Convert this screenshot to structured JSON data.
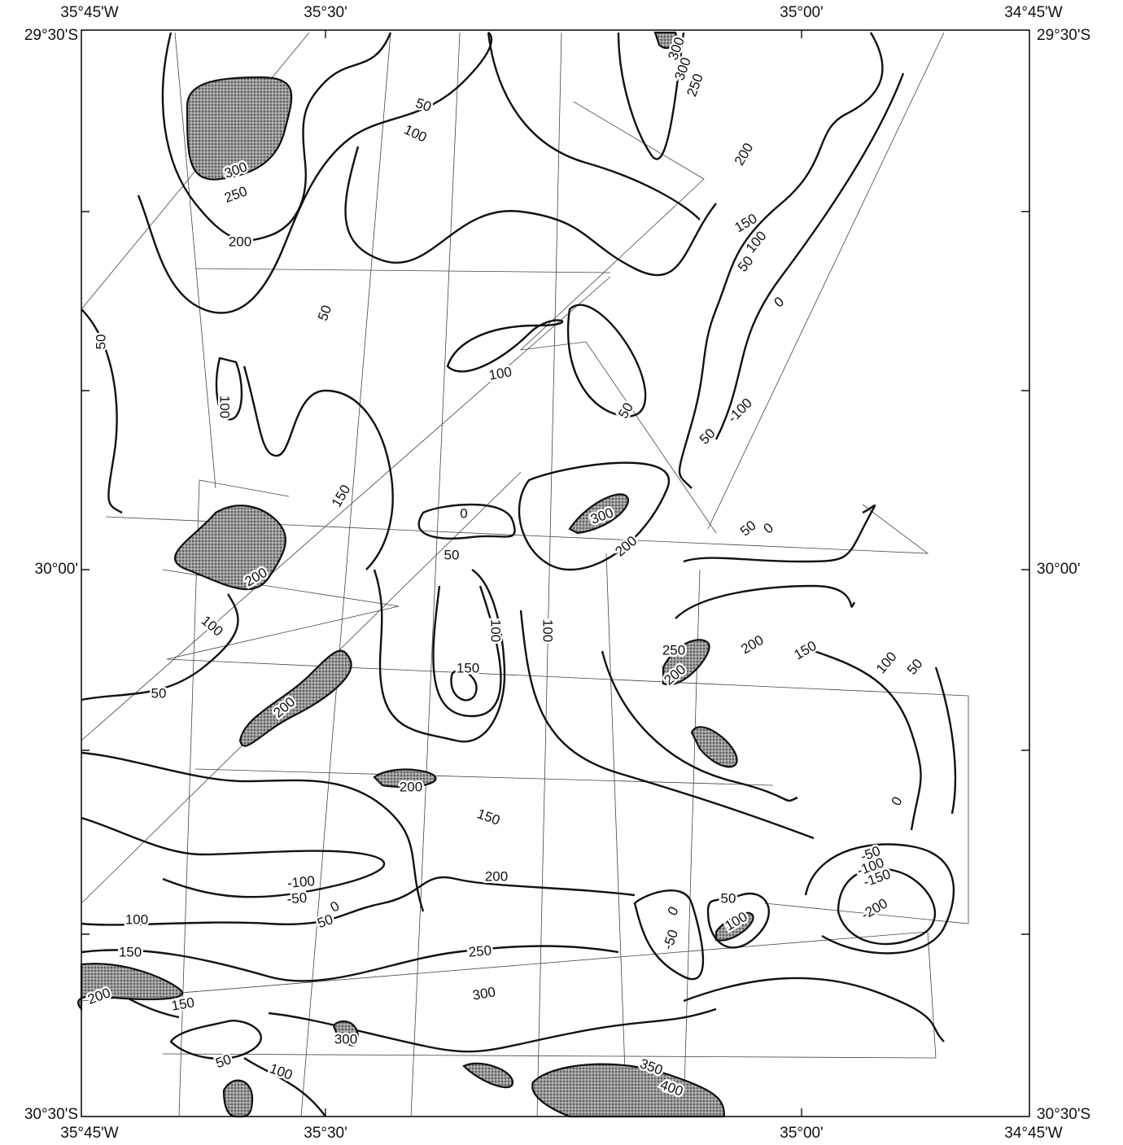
{
  "map": {
    "top_labels": [
      "35°45'W",
      "35°30'",
      "35°00'",
      "34°45'W"
    ],
    "bottom_labels": [
      "35°45'W",
      "35°30'",
      "35°00'",
      "34°45'W"
    ],
    "left_labels": [
      "29°30'S",
      "30°00'",
      "30°30'S"
    ],
    "right_labels": [
      "29°30'S",
      "30°00'",
      "30°30'S"
    ],
    "contour_labels": [
      "50",
      "100",
      "300",
      "250",
      "200",
      "50",
      "50",
      "100",
      "100",
      "50",
      "150",
      "0",
      "50",
      "300",
      "200",
      "50",
      "0",
      "200",
      "100",
      "100",
      "100",
      "50",
      "150",
      "250",
      "200",
      "150",
      "100",
      "50",
      "200",
      "200",
      "150",
      "0",
      "200",
      "-100",
      "-50",
      "0",
      "50",
      "100",
      "150",
      "200",
      "150",
      "250",
      "300",
      "300",
      "50",
      "100",
      "350",
      "400",
      "0",
      "-50",
      "50",
      "100",
      "-50",
      "-100",
      "-150",
      "-200",
      "200",
      "150",
      "100",
      "50",
      "0",
      "-100",
      "50",
      "300",
      "300",
      "250",
      "200"
    ]
  }
}
